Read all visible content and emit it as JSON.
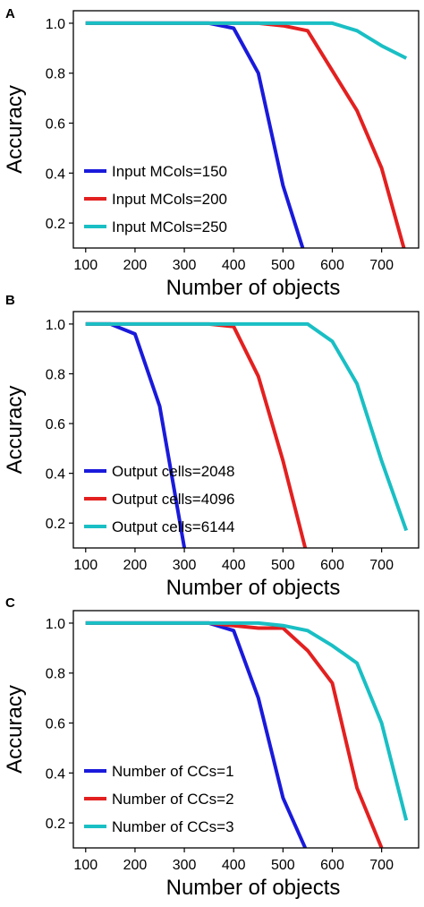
{
  "chart_data": [
    {
      "panel": "A",
      "type": "line",
      "xlabel": "Number of objects",
      "ylabel": "Accuracy",
      "xlim": [
        75,
        775
      ],
      "ylim": [
        0.1,
        1.05
      ],
      "xticks": [
        100,
        200,
        300,
        400,
        500,
        600,
        700
      ],
      "yticks": [
        0.2,
        0.4,
        0.6,
        0.8,
        1.0
      ],
      "xtick_labels": [
        "100",
        "200",
        "300",
        "400",
        "500",
        "600",
        "700"
      ],
      "ytick_labels": [
        "0.2",
        "0.4",
        "0.6",
        "0.8",
        "1.0"
      ],
      "legend_position": "lower-left",
      "series": [
        {
          "name": "Input MCols=150",
          "color": "#1a1adb",
          "x": [
            100,
            150,
            200,
            250,
            300,
            350,
            400,
            450,
            500,
            540
          ],
          "y": [
            1.0,
            1.0,
            1.0,
            1.0,
            1.0,
            1.0,
            0.98,
            0.8,
            0.35,
            0.1
          ]
        },
        {
          "name": "Input MCols=200",
          "color": "#e32020",
          "x": [
            100,
            150,
            200,
            250,
            300,
            350,
            400,
            450,
            500,
            550,
            600,
            650,
            700,
            745
          ],
          "y": [
            1.0,
            1.0,
            1.0,
            1.0,
            1.0,
            1.0,
            1.0,
            1.0,
            0.99,
            0.97,
            0.81,
            0.65,
            0.42,
            0.1
          ]
        },
        {
          "name": "Input MCols=250",
          "color": "#19bfc4",
          "x": [
            100,
            150,
            200,
            250,
            300,
            350,
            400,
            450,
            500,
            550,
            600,
            650,
            700,
            750
          ],
          "y": [
            1.0,
            1.0,
            1.0,
            1.0,
            1.0,
            1.0,
            1.0,
            1.0,
            1.0,
            1.0,
            1.0,
            0.97,
            0.91,
            0.86
          ]
        }
      ]
    },
    {
      "panel": "B",
      "type": "line",
      "xlabel": "Number of objects",
      "ylabel": "Accuracy",
      "xlim": [
        75,
        775
      ],
      "ylim": [
        0.1,
        1.05
      ],
      "xticks": [
        100,
        200,
        300,
        400,
        500,
        600,
        700
      ],
      "yticks": [
        0.2,
        0.4,
        0.6,
        0.8,
        1.0
      ],
      "xtick_labels": [
        "100",
        "200",
        "300",
        "400",
        "500",
        "600",
        "700"
      ],
      "ytick_labels": [
        "0.2",
        "0.4",
        "0.6",
        "0.8",
        "1.0"
      ],
      "legend_position": "lower-left",
      "series": [
        {
          "name": "Output cells=2048",
          "color": "#1a1adb",
          "x": [
            100,
            150,
            200,
            250,
            300
          ],
          "y": [
            1.0,
            1.0,
            0.96,
            0.67,
            0.1
          ]
        },
        {
          "name": "Output cells=4096",
          "color": "#e32020",
          "x": [
            100,
            150,
            200,
            250,
            300,
            350,
            400,
            450,
            500,
            545
          ],
          "y": [
            1.0,
            1.0,
            1.0,
            1.0,
            1.0,
            1.0,
            0.99,
            0.79,
            0.45,
            0.1
          ]
        },
        {
          "name": "Output cells=6144",
          "color": "#19bfc4",
          "x": [
            100,
            150,
            200,
            250,
            300,
            350,
            400,
            450,
            500,
            550,
            600,
            650,
            700,
            750
          ],
          "y": [
            1.0,
            1.0,
            1.0,
            1.0,
            1.0,
            1.0,
            1.0,
            1.0,
            1.0,
            1.0,
            0.93,
            0.76,
            0.45,
            0.17
          ]
        }
      ]
    },
    {
      "panel": "C",
      "type": "line",
      "xlabel": "Number of objects",
      "ylabel": "Accuracy",
      "xlim": [
        75,
        775
      ],
      "ylim": [
        0.1,
        1.05
      ],
      "xticks": [
        100,
        200,
        300,
        400,
        500,
        600,
        700
      ],
      "yticks": [
        0.2,
        0.4,
        0.6,
        0.8,
        1.0
      ],
      "xtick_labels": [
        "100",
        "200",
        "300",
        "400",
        "500",
        "600",
        "700"
      ],
      "ytick_labels": [
        "0.2",
        "0.4",
        "0.6",
        "0.8",
        "1.0"
      ],
      "legend_position": "lower-left",
      "series": [
        {
          "name": "Number of CCs=1",
          "color": "#1a1adb",
          "x": [
            100,
            150,
            200,
            250,
            300,
            350,
            400,
            450,
            500,
            545
          ],
          "y": [
            1.0,
            1.0,
            1.0,
            1.0,
            1.0,
            1.0,
            0.97,
            0.7,
            0.3,
            0.1
          ]
        },
        {
          "name": "Number of CCs=2",
          "color": "#e32020",
          "x": [
            100,
            150,
            200,
            250,
            300,
            350,
            400,
            450,
            500,
            550,
            600,
            650,
            700
          ],
          "y": [
            1.0,
            1.0,
            1.0,
            1.0,
            1.0,
            1.0,
            0.99,
            0.98,
            0.98,
            0.89,
            0.76,
            0.34,
            0.1
          ]
        },
        {
          "name": "Number of CCs=3",
          "color": "#19bfc4",
          "x": [
            100,
            150,
            200,
            250,
            300,
            350,
            400,
            450,
            500,
            550,
            600,
            650,
            700,
            750
          ],
          "y": [
            1.0,
            1.0,
            1.0,
            1.0,
            1.0,
            1.0,
            1.0,
            1.0,
            0.99,
            0.97,
            0.91,
            0.84,
            0.6,
            0.21
          ]
        }
      ]
    }
  ]
}
